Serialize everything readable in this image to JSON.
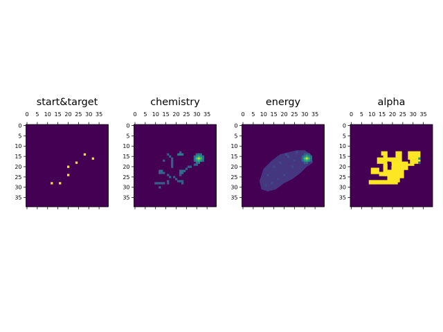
{
  "figure": {
    "background": "#ffffff"
  },
  "colormap": {
    "name": "viridis",
    "low": "#440154",
    "high": "#fde725"
  },
  "chart_data": [
    {
      "type": "heatmap",
      "title": "start&target",
      "grid_size": [
        40,
        40
      ],
      "xticks": [
        "0",
        "5",
        "10",
        "15",
        "20",
        "25",
        "30",
        "35"
      ],
      "yticks": [
        "0",
        "5",
        "10",
        "15",
        "20",
        "25",
        "30",
        "35"
      ],
      "tick_values": [
        0,
        5,
        10,
        15,
        20,
        25,
        30,
        35
      ],
      "xaxis_position": "top",
      "vrange": [
        0,
        1
      ],
      "cells": [
        {
          "x": 28,
          "y": 14,
          "v": 1
        },
        {
          "x": 32,
          "y": 16,
          "v": 1
        },
        {
          "x": 24,
          "y": 18,
          "v": 1
        },
        {
          "x": 20,
          "y": 20,
          "v": 1
        },
        {
          "x": 20,
          "y": 24,
          "v": 1
        },
        {
          "x": 12,
          "y": 28,
          "v": 1
        },
        {
          "x": 16,
          "y": 28,
          "v": 1
        }
      ]
    },
    {
      "type": "heatmap",
      "title": "chemistry",
      "grid_size": [
        40,
        40
      ],
      "xticks": [
        "0",
        "5",
        "10",
        "15",
        "20",
        "25",
        "30",
        "35"
      ],
      "yticks": [
        "0",
        "5",
        "10",
        "15",
        "20",
        "25",
        "30",
        "35"
      ],
      "tick_values": [
        0,
        5,
        10,
        15,
        20,
        25,
        30,
        35
      ],
      "xaxis_position": "top",
      "vrange": [
        0,
        1
      ],
      "cells": [
        {
          "x": 22,
          "y": 13,
          "v": 0.3
        },
        {
          "x": 21,
          "y": 14,
          "v": 0.4
        },
        {
          "x": 22,
          "y": 14,
          "v": 0.45
        },
        {
          "x": 23,
          "y": 14,
          "v": 0.4
        },
        {
          "x": 16,
          "y": 14,
          "v": 0.3
        },
        {
          "x": 17,
          "y": 15,
          "v": 0.3
        },
        {
          "x": 18,
          "y": 16,
          "v": 0.3
        },
        {
          "x": 18,
          "y": 17,
          "v": 0.3
        },
        {
          "x": 18,
          "y": 18,
          "v": 0.3
        },
        {
          "x": 18,
          "y": 19,
          "v": 0.3
        },
        {
          "x": 18,
          "y": 20,
          "v": 0.3
        },
        {
          "x": 14,
          "y": 17,
          "v": 0.3
        },
        {
          "x": 30,
          "y": 14,
          "v": 0.35
        },
        {
          "x": 31,
          "y": 14,
          "v": 0.4
        },
        {
          "x": 32,
          "y": 14,
          "v": 0.35
        },
        {
          "x": 29,
          "y": 15,
          "v": 0.35
        },
        {
          "x": 30,
          "y": 15,
          "v": 0.5
        },
        {
          "x": 31,
          "y": 15,
          "v": 0.6
        },
        {
          "x": 32,
          "y": 15,
          "v": 0.5
        },
        {
          "x": 33,
          "y": 15,
          "v": 0.35
        },
        {
          "x": 29,
          "y": 16,
          "v": 0.4
        },
        {
          "x": 30,
          "y": 16,
          "v": 0.7
        },
        {
          "x": 31,
          "y": 16,
          "v": 0.9
        },
        {
          "x": 32,
          "y": 16,
          "v": 0.7
        },
        {
          "x": 33,
          "y": 16,
          "v": 0.4
        },
        {
          "x": 29,
          "y": 17,
          "v": 0.35
        },
        {
          "x": 30,
          "y": 17,
          "v": 0.55
        },
        {
          "x": 31,
          "y": 17,
          "v": 0.65
        },
        {
          "x": 32,
          "y": 17,
          "v": 0.5
        },
        {
          "x": 33,
          "y": 17,
          "v": 0.35
        },
        {
          "x": 30,
          "y": 18,
          "v": 0.35
        },
        {
          "x": 31,
          "y": 18,
          "v": 0.4
        },
        {
          "x": 29,
          "y": 19,
          "v": 0.3
        },
        {
          "x": 30,
          "y": 19,
          "v": 0.3
        },
        {
          "x": 26,
          "y": 20,
          "v": 0.3
        },
        {
          "x": 27,
          "y": 20,
          "v": 0.3
        },
        {
          "x": 25,
          "y": 21,
          "v": 0.3
        },
        {
          "x": 12,
          "y": 22,
          "v": 0.35
        },
        {
          "x": 13,
          "y": 22,
          "v": 0.35
        },
        {
          "x": 12,
          "y": 23,
          "v": 0.35
        },
        {
          "x": 13,
          "y": 23,
          "v": 0.3
        },
        {
          "x": 14,
          "y": 23,
          "v": 0.3
        },
        {
          "x": 22,
          "y": 22,
          "v": 0.35
        },
        {
          "x": 23,
          "y": 22,
          "v": 0.35
        },
        {
          "x": 24,
          "y": 22,
          "v": 0.35
        },
        {
          "x": 22,
          "y": 23,
          "v": 0.35
        },
        {
          "x": 23,
          "y": 23,
          "v": 0.35
        },
        {
          "x": 22,
          "y": 24,
          "v": 0.3
        },
        {
          "x": 16,
          "y": 24,
          "v": 0.3
        },
        {
          "x": 17,
          "y": 25,
          "v": 0.3
        },
        {
          "x": 19,
          "y": 25,
          "v": 0.3
        },
        {
          "x": 20,
          "y": 26,
          "v": 0.3
        },
        {
          "x": 21,
          "y": 27,
          "v": 0.3
        },
        {
          "x": 22,
          "y": 27,
          "v": 0.3
        },
        {
          "x": 23,
          "y": 27,
          "v": 0.3
        },
        {
          "x": 23,
          "y": 28,
          "v": 0.3
        },
        {
          "x": 16,
          "y": 27,
          "v": 0.3
        },
        {
          "x": 16,
          "y": 28,
          "v": 0.3
        },
        {
          "x": 10,
          "y": 28,
          "v": 0.3
        },
        {
          "x": 11,
          "y": 28,
          "v": 0.3
        },
        {
          "x": 12,
          "y": 28,
          "v": 0.3
        },
        {
          "x": 13,
          "y": 28,
          "v": 0.3
        },
        {
          "x": 14,
          "y": 28,
          "v": 0.3
        },
        {
          "x": 12,
          "y": 30,
          "v": 0.3
        }
      ]
    },
    {
      "type": "heatmap",
      "title": "energy",
      "grid_size": [
        40,
        40
      ],
      "xticks": [
        "0",
        "5",
        "10",
        "15",
        "20",
        "25",
        "30",
        "35"
      ],
      "yticks": [
        "0",
        "5",
        "10",
        "15",
        "20",
        "25",
        "30",
        "35"
      ],
      "tick_values": [
        0,
        5,
        10,
        15,
        20,
        25,
        30,
        35
      ],
      "xaxis_position": "top",
      "vrange": [
        0,
        1
      ],
      "blob": {
        "polygon": [
          [
            8,
            27
          ],
          [
            10,
            21
          ],
          [
            14,
            17
          ],
          [
            18,
            14
          ],
          [
            22,
            13
          ],
          [
            26,
            12
          ],
          [
            30,
            12
          ],
          [
            33,
            14
          ],
          [
            34,
            18
          ],
          [
            31,
            20
          ],
          [
            28,
            23
          ],
          [
            24,
            26
          ],
          [
            20,
            28
          ],
          [
            16,
            31
          ],
          [
            12,
            32
          ],
          [
            9,
            31
          ]
        ],
        "v": 0.16
      },
      "cells": [
        {
          "x": 21,
          "y": 14,
          "v": 0.24
        },
        {
          "x": 22,
          "y": 15,
          "v": 0.24
        },
        {
          "x": 26,
          "y": 13,
          "v": 0.22
        },
        {
          "x": 18,
          "y": 18,
          "v": 0.22
        },
        {
          "x": 15,
          "y": 20,
          "v": 0.22
        },
        {
          "x": 12,
          "y": 24,
          "v": 0.22
        },
        {
          "x": 20,
          "y": 24,
          "v": 0.22
        },
        {
          "x": 14,
          "y": 28,
          "v": 0.22
        },
        {
          "x": 24,
          "y": 20,
          "v": 0.22
        },
        {
          "x": 17,
          "y": 26,
          "v": 0.2
        },
        {
          "x": 11,
          "y": 29,
          "v": 0.2
        },
        {
          "x": 25,
          "y": 17,
          "v": 0.2
        },
        {
          "x": 30,
          "y": 14,
          "v": 0.3
        },
        {
          "x": 31,
          "y": 14,
          "v": 0.35
        },
        {
          "x": 32,
          "y": 14,
          "v": 0.3
        },
        {
          "x": 29,
          "y": 15,
          "v": 0.32
        },
        {
          "x": 30,
          "y": 15,
          "v": 0.48
        },
        {
          "x": 31,
          "y": 15,
          "v": 0.6
        },
        {
          "x": 32,
          "y": 15,
          "v": 0.48
        },
        {
          "x": 33,
          "y": 15,
          "v": 0.32
        },
        {
          "x": 29,
          "y": 16,
          "v": 0.4
        },
        {
          "x": 30,
          "y": 16,
          "v": 0.7
        },
        {
          "x": 31,
          "y": 16,
          "v": 0.92
        },
        {
          "x": 32,
          "y": 16,
          "v": 0.7
        },
        {
          "x": 33,
          "y": 16,
          "v": 0.4
        },
        {
          "x": 29,
          "y": 17,
          "v": 0.32
        },
        {
          "x": 30,
          "y": 17,
          "v": 0.55
        },
        {
          "x": 31,
          "y": 17,
          "v": 0.65
        },
        {
          "x": 32,
          "y": 17,
          "v": 0.5
        },
        {
          "x": 33,
          "y": 17,
          "v": 0.3
        },
        {
          "x": 30,
          "y": 18,
          "v": 0.3
        },
        {
          "x": 31,
          "y": 18,
          "v": 0.32
        }
      ]
    },
    {
      "type": "heatmap",
      "title": "alpha",
      "grid_size": [
        40,
        40
      ],
      "xticks": [
        "0",
        "5",
        "10",
        "15",
        "20",
        "25",
        "30",
        "35"
      ],
      "yticks": [
        "0",
        "5",
        "10",
        "15",
        "20",
        "25",
        "30",
        "35"
      ],
      "tick_values": [
        0,
        5,
        10,
        15,
        20,
        25,
        30,
        35
      ],
      "xaxis_position": "top",
      "vrange": [
        0,
        1
      ],
      "rects": [
        {
          "x": 15,
          "y": 13,
          "w": 3,
          "h": 2,
          "v": 1
        },
        {
          "x": 13,
          "y": 16,
          "w": 3,
          "h": 3,
          "v": 1
        },
        {
          "x": 16,
          "y": 15,
          "w": 2,
          "h": 10,
          "v": 1
        },
        {
          "x": 18,
          "y": 16,
          "w": 4,
          "h": 2,
          "v": 1
        },
        {
          "x": 22,
          "y": 13,
          "w": 3,
          "h": 5,
          "v": 1
        },
        {
          "x": 20,
          "y": 18,
          "w": 8,
          "h": 4,
          "v": 1
        },
        {
          "x": 28,
          "y": 13,
          "w": 6,
          "h": 4,
          "v": 1
        },
        {
          "x": 29,
          "y": 17,
          "w": 5,
          "h": 2,
          "v": 1
        },
        {
          "x": 28,
          "y": 19,
          "w": 3,
          "h": 1,
          "v": 1
        },
        {
          "x": 10,
          "y": 21,
          "w": 4,
          "h": 3,
          "v": 1
        },
        {
          "x": 14,
          "y": 23,
          "w": 4,
          "h": 2,
          "v": 1
        },
        {
          "x": 18,
          "y": 22,
          "w": 8,
          "h": 4,
          "v": 1
        },
        {
          "x": 18,
          "y": 26,
          "w": 6,
          "h": 2,
          "v": 1
        },
        {
          "x": 19,
          "y": 28,
          "w": 4,
          "h": 1,
          "v": 1
        },
        {
          "x": 9,
          "y": 27,
          "w": 10,
          "h": 2,
          "v": 1
        }
      ],
      "cells": [
        {
          "x": 18,
          "y": 18,
          "v": 0
        },
        {
          "x": 19,
          "y": 19,
          "v": 0
        },
        {
          "x": 33,
          "y": 16,
          "v": 0.5
        },
        {
          "x": 33,
          "y": 18,
          "v": 0.3
        }
      ]
    }
  ]
}
